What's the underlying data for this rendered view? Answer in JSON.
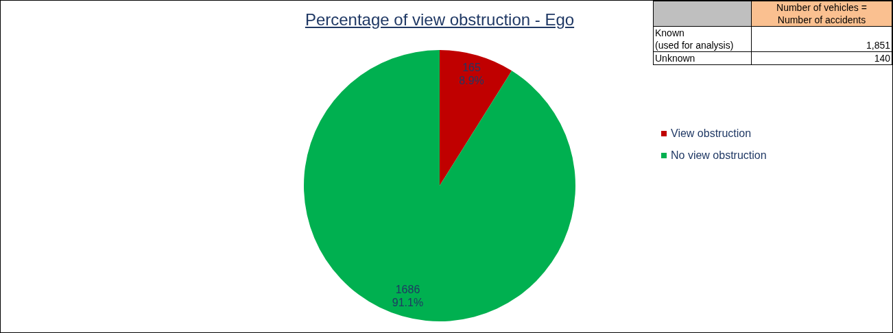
{
  "chart_data": {
    "type": "pie",
    "title": "Percentage of view obstruction - Ego",
    "categories": [
      "View obstruction",
      "No view obstruction"
    ],
    "values": [
      165,
      1686
    ],
    "colors": [
      "#c00000",
      "#00b050"
    ],
    "value_labels": [
      "165\n8.9%",
      "1686\n91.1%"
    ],
    "legend": "right",
    "annotations": [
      "Number of vehicles =\nNumber of accidents",
      "Known\n(used for analysis)",
      "1,851",
      "Unknown",
      "140"
    ]
  }
}
